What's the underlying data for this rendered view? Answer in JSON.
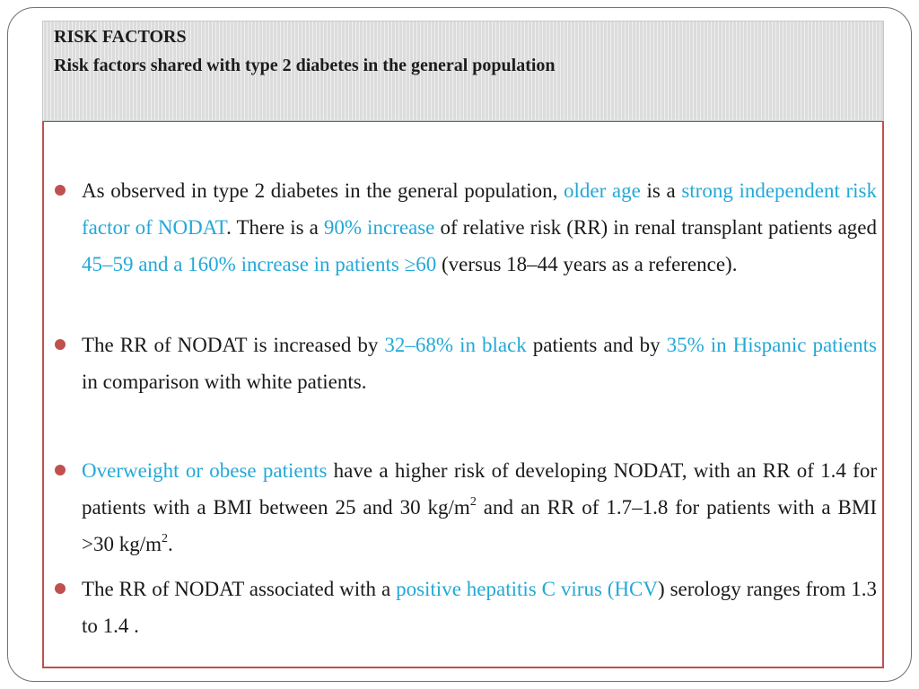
{
  "header": {
    "title": "RISK FACTORS",
    "subtitle": "Risk factors shared with type 2 diabetes in the general population"
  },
  "colors": {
    "highlight": "#23a8d8",
    "bullet": "#c0504d",
    "border": "#c0504d"
  },
  "bullets": [
    {
      "segments": [
        {
          "text": "As observed in type 2 diabetes in the general population, ",
          "highlight": false
        },
        {
          "text": "older age",
          "highlight": true
        },
        {
          "text": " is a ",
          "highlight": false
        },
        {
          "text": "strong independent risk factor of NODAT",
          "highlight": true
        },
        {
          "text": ". There is a ",
          "highlight": false
        },
        {
          "text": "90% increase",
          "highlight": true
        },
        {
          "text": " of relative risk (RR) in renal transplant patients aged ",
          "highlight": false
        },
        {
          "text": "45–59 and a 160% increase in patients ≥60",
          "highlight": true
        },
        {
          "text": " (versus 18–44 years as a reference).",
          "highlight": false
        }
      ]
    },
    {
      "segments": [
        {
          "text": "The RR of NODAT is increased by ",
          "highlight": false
        },
        {
          "text": "32–68% in black",
          "highlight": true
        },
        {
          "text": " patients and by ",
          "highlight": false
        },
        {
          "text": "35% in Hispanic patients",
          "highlight": true
        },
        {
          "text": " in comparison with white patients.",
          "highlight": false
        }
      ]
    },
    {
      "segments": [
        {
          "text": "Overweight or obese patients",
          "highlight": true
        },
        {
          "text": " have a higher risk of developing NODAT, with an RR of 1.4 for patients with a BMI between 25 and 30 kg/m",
          "highlight": false
        },
        {
          "text": "2",
          "highlight": false,
          "sup": true
        },
        {
          "text": " and an RR of 1.7–1.8 for patients with a BMI >30 kg/m",
          "highlight": false
        },
        {
          "text": "2",
          "highlight": false,
          "sup": true
        },
        {
          "text": ".",
          "highlight": false
        }
      ]
    },
    {
      "segments": [
        {
          "text": "The RR of NODAT associated with a ",
          "highlight": false
        },
        {
          "text": "positive hepatitis C virus (HCV",
          "highlight": true
        },
        {
          "text": ") serology ranges from 1.3 to 1.4 .",
          "highlight": false
        }
      ]
    }
  ]
}
